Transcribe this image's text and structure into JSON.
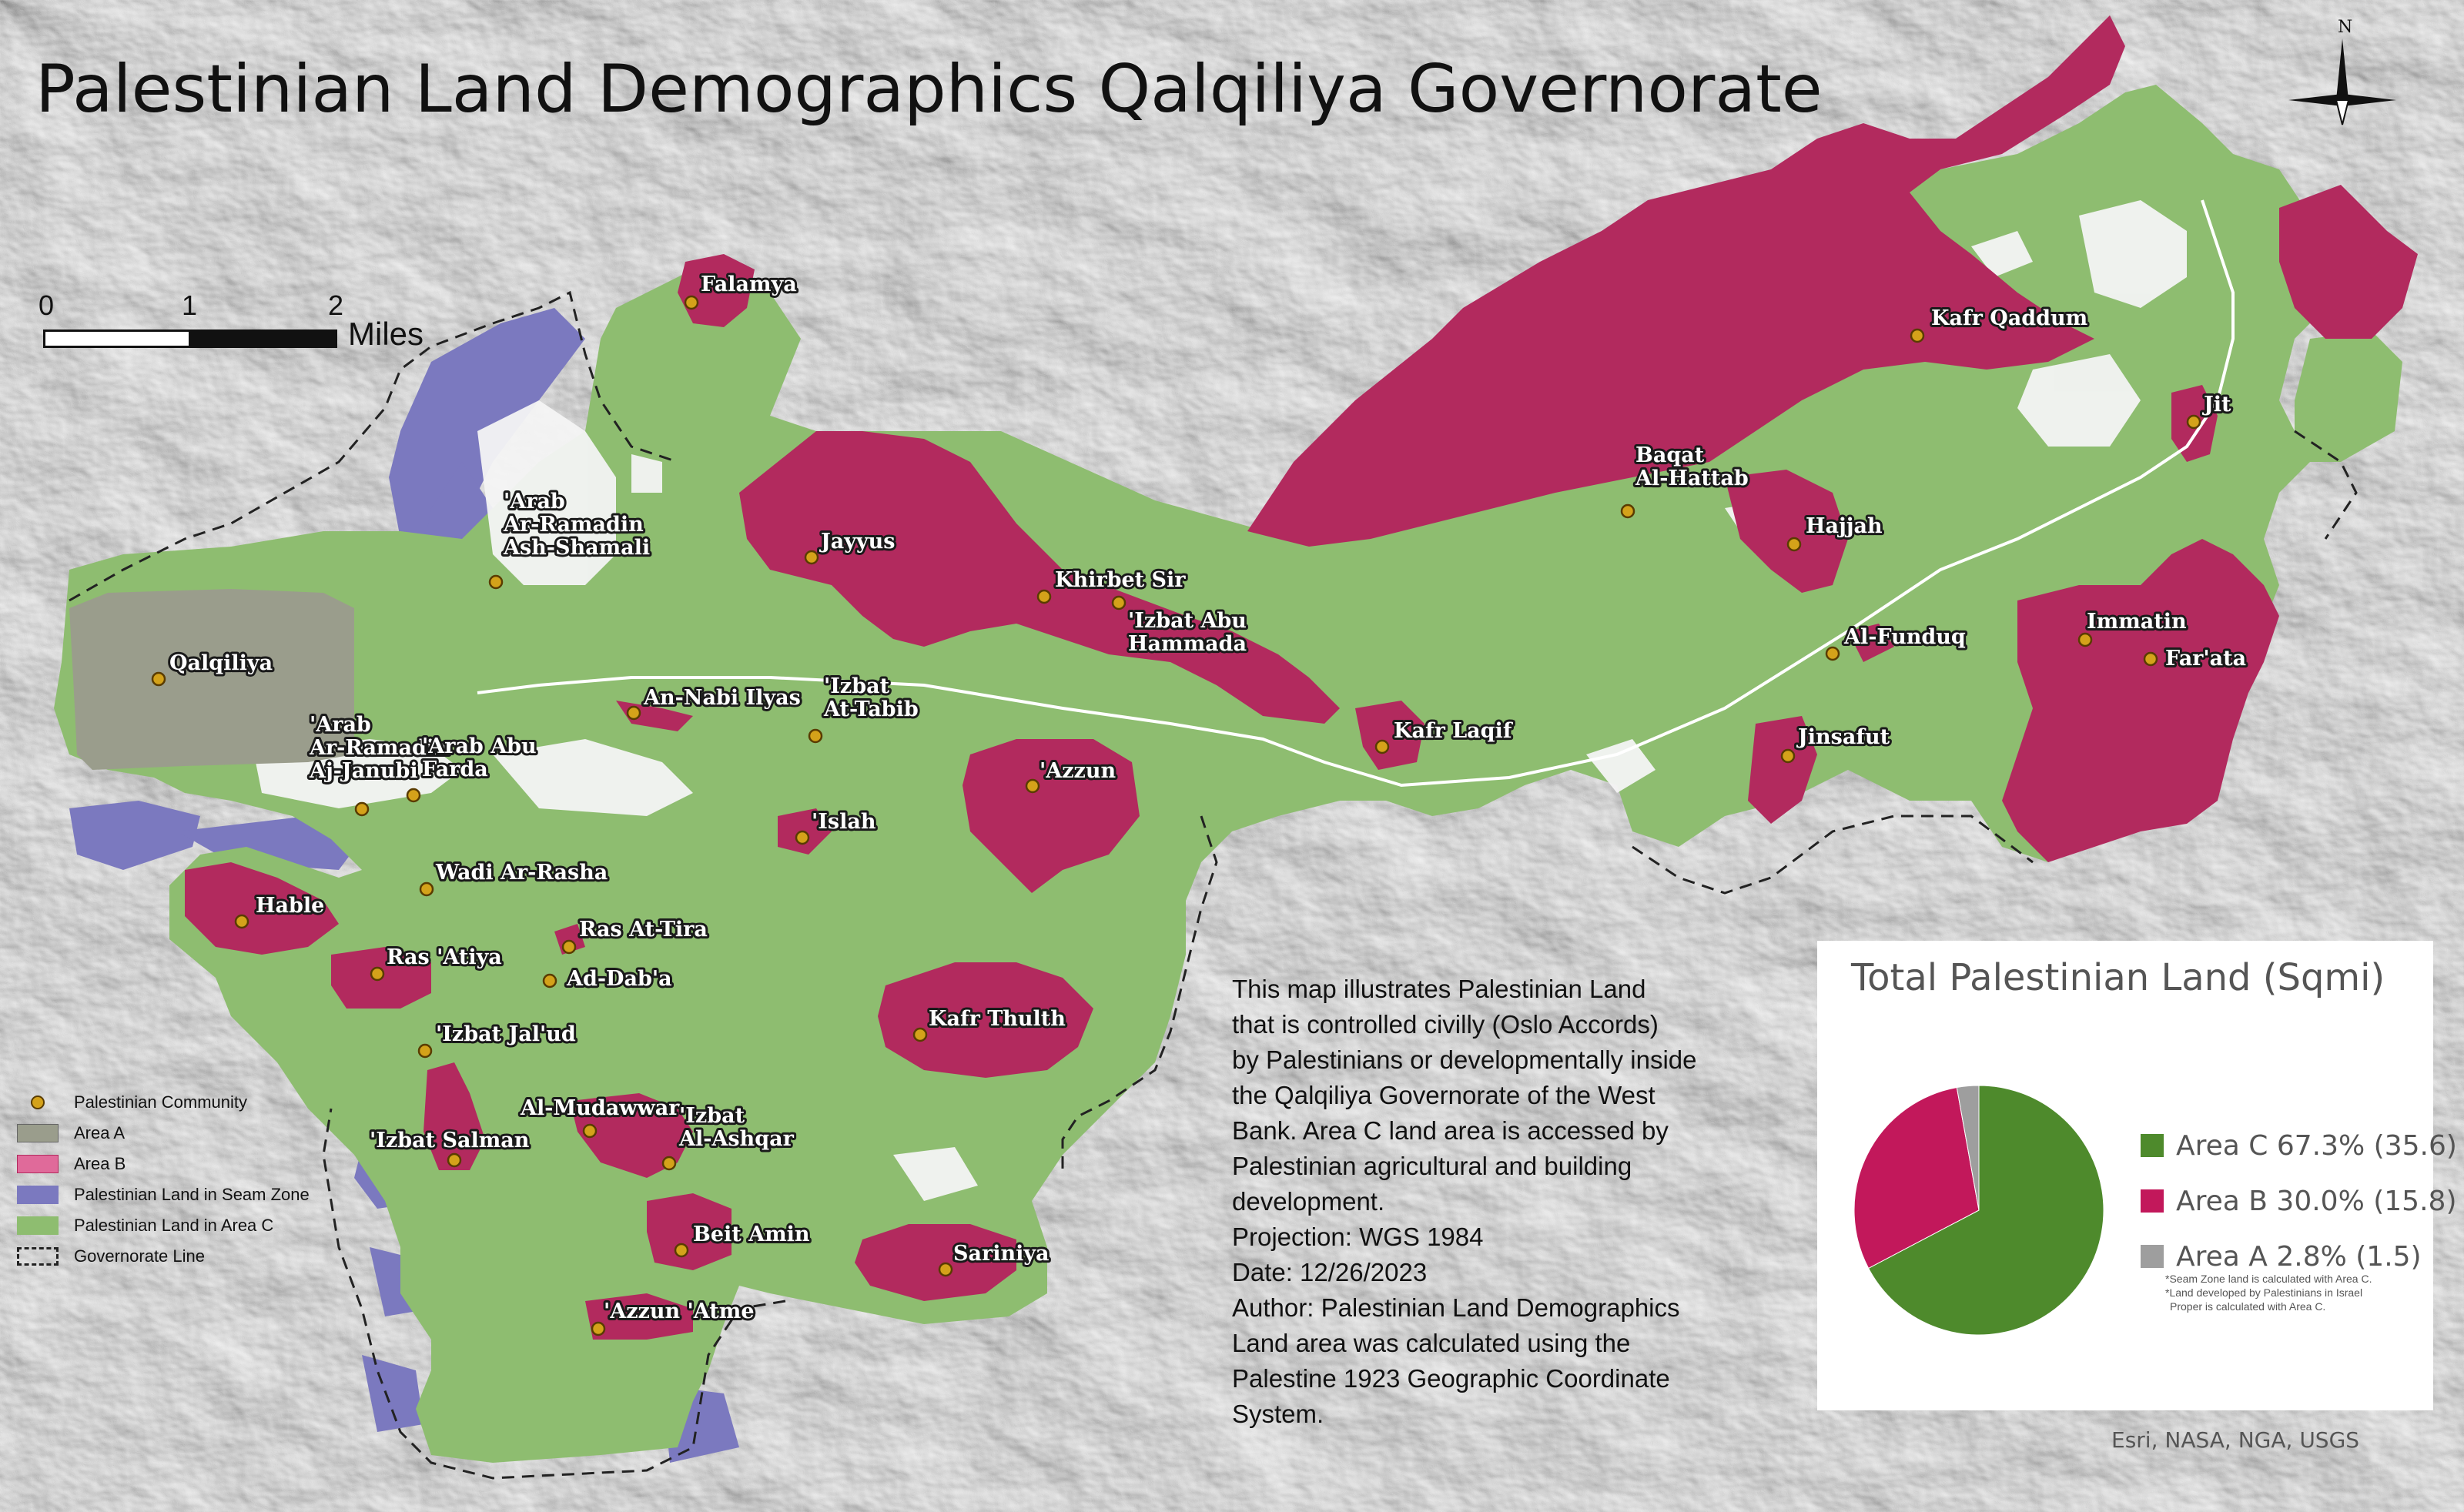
{
  "title": "Palestinian Land Demographics Qalqiliya Governorate",
  "colors": {
    "area_a": "#9a9d8c",
    "area_b": "#b22a5e",
    "seam_zone": "#7b79bf",
    "area_c": "#8ebd70",
    "community_dot": "#d4a21a"
  },
  "places": [
    {
      "name": "Falamya",
      "lines": [
        "Falamya"
      ]
    },
    {
      "name": "'Arab Ar-Ramadin Ash-Shamali",
      "lines": [
        "'Arab",
        "Ar-Ramadin",
        "Ash-Shamali"
      ]
    },
    {
      "name": "Jayyus",
      "lines": [
        "Jayyus"
      ]
    },
    {
      "name": "Khirbet Sir",
      "lines": [
        "Khirbet Sir"
      ]
    },
    {
      "name": "'Izbat Abu Hammada",
      "lines": [
        "'Izbat Abu",
        "Hammada"
      ]
    },
    {
      "name": "Qalqiliya",
      "lines": [
        "Qalqiliya"
      ]
    },
    {
      "name": "An-Nabi Ilyas",
      "lines": [
        "An-Nabi Ilyas"
      ]
    },
    {
      "name": "'Izbat At-Tabib",
      "lines": [
        "'Izbat",
        "At-Tabib"
      ]
    },
    {
      "name": "'Arab Ar-Ramadin Aj-Janubi",
      "lines": [
        "'Arab",
        "Ar-Ramadin",
        "Aj-Janubi"
      ]
    },
    {
      "name": "'Arab Abu Farda",
      "lines": [
        "'Arab Abu",
        "Farda"
      ]
    },
    {
      "name": "'Azzun",
      "lines": [
        "'Azzun"
      ]
    },
    {
      "name": "'Islah",
      "lines": [
        "'Islah"
      ]
    },
    {
      "name": "Wadi Ar-Rasha",
      "lines": [
        "Wadi Ar-Rasha"
      ]
    },
    {
      "name": "Hable",
      "lines": [
        "Hable"
      ]
    },
    {
      "name": "Ras At-Tira",
      "lines": [
        "Ras At-Tira"
      ]
    },
    {
      "name": "Ras 'Atiya",
      "lines": [
        "Ras 'Atiya"
      ]
    },
    {
      "name": "Ad-Dab'a",
      "lines": [
        "Ad-Dab'a"
      ]
    },
    {
      "name": "'Izbat Jal'ud",
      "lines": [
        "'Izbat Jal'ud"
      ]
    },
    {
      "name": "Kafr Thulth",
      "lines": [
        "Kafr Thulth"
      ]
    },
    {
      "name": "Al-Mudawwar",
      "lines": [
        "Al-Mudawwar"
      ]
    },
    {
      "name": "'Izbat Al-Ashqar",
      "lines": [
        "'Izbat",
        "Al-Ashqar"
      ]
    },
    {
      "name": "'Izbat Salman",
      "lines": [
        "'Izbat Salman"
      ]
    },
    {
      "name": "Beit Amin",
      "lines": [
        "Beit Amin"
      ]
    },
    {
      "name": "Sariniya",
      "lines": [
        "Sariniya"
      ]
    },
    {
      "name": "'Azzun 'Atme",
      "lines": [
        "'Azzun 'Atme"
      ]
    },
    {
      "name": "Kafr Qaddum",
      "lines": [
        "Kafr Qaddum"
      ]
    },
    {
      "name": "Jit",
      "lines": [
        "Jit"
      ]
    },
    {
      "name": "Baqat Al-Hattab",
      "lines": [
        "Baqat",
        "Al-Hattab"
      ]
    },
    {
      "name": "Hajjah",
      "lines": [
        "Hajjah"
      ]
    },
    {
      "name": "Al-Funduq",
      "lines": [
        "Al-Funduq"
      ]
    },
    {
      "name": "Immatin",
      "lines": [
        "Immatin"
      ]
    },
    {
      "name": "Far'ata",
      "lines": [
        "Far'ata"
      ]
    },
    {
      "name": "Kafr Laqif",
      "lines": [
        "Kafr Laqif"
      ]
    },
    {
      "name": "Jinsafut",
      "lines": [
        "Jinsafut"
      ]
    }
  ],
  "scale_bar": {
    "ticks": [
      "0",
      "1",
      "2"
    ],
    "unit": "Miles"
  },
  "compass": {
    "north_label": "N"
  },
  "legend": [
    {
      "label": "Palestinian Community",
      "symbol": "dot"
    },
    {
      "label": "Area A",
      "symbol": "area_a"
    },
    {
      "label": "Area B",
      "symbol": "area_b"
    },
    {
      "label": "Palestinian Land in Seam Zone",
      "symbol": "seam_zone"
    },
    {
      "label": "Palestinian Land in Area C",
      "symbol": "area_c"
    },
    {
      "label": "Governorate Line",
      "symbol": "dashed"
    }
  ],
  "description": {
    "lines": [
      "This map illustrates Palestinian Land",
      "that is controlled civilly (Oslo Accords)",
      "by Palestinians or developmentally inside",
      "the Qalqiliya Governorate of the West",
      "Bank. Area C land area is accessed by",
      "Palestinian agricultural and building",
      "development.",
      "Projection:  WGS 1984",
      "Date:  12/26/2023",
      "Author: Palestinian Land Demographics",
      "Land area was calculated using the",
      "Palestine 1923 Geographic Coordinate",
      "System."
    ]
  },
  "chart_data": {
    "type": "pie",
    "title": "Total Palestinian Land (Sqmi)",
    "slices": [
      {
        "label": "Area C 67.3% (35.6)",
        "value": 35.6,
        "percent": 67.3,
        "color": "#4e8a2c"
      },
      {
        "label": "Area B 30.0% (15.8)",
        "value": 15.8,
        "percent": 30.0,
        "color": "#c2185b"
      },
      {
        "label": "Area A 2.8% (1.5)",
        "value": 1.5,
        "percent": 2.8,
        "color": "#9e9e9e"
      }
    ],
    "notes": [
      "*Seam Zone land is calculated with Area C.",
      "*Land developed by Palestinians in Israel",
      "Proper is calculated with Area C."
    ]
  },
  "credit": "Esri, NASA, NGA, USGS"
}
